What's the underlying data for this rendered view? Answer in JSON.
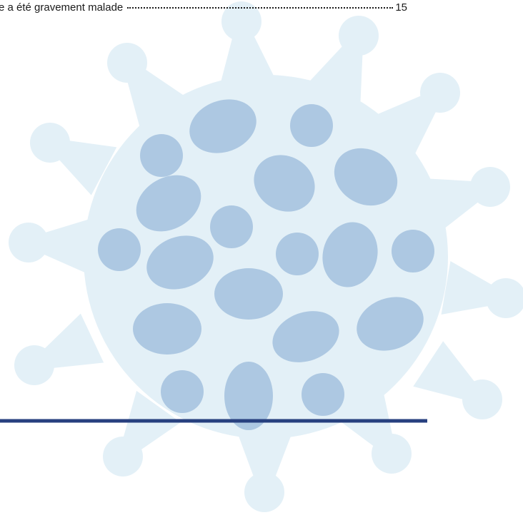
{
  "toc": {
    "entries": [
      {
        "title": "e a été gravement malade",
        "page": 15
      }
    ]
  }
}
